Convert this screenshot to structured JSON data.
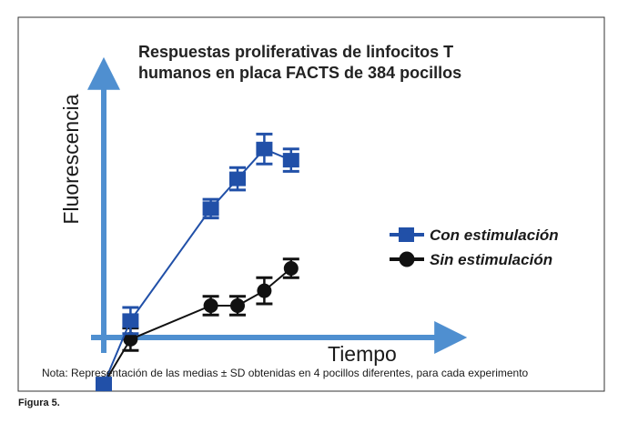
{
  "chart_data": {
    "type": "line",
    "title_lines": [
      "Respuestas proliferativas de linfocitos T",
      "humanos en placa FACTS de 384 pocillos"
    ],
    "xlabel": "Tiempo",
    "ylabel": "Fluorescencia",
    "xlim": [
      0,
      10
    ],
    "ylim": [
      0,
      10
    ],
    "grid": false,
    "legend_position": "right",
    "series": [
      {
        "name": "Con estimulación",
        "color": "#2150a8",
        "marker": "square",
        "x": [
          0,
          1,
          4,
          5,
          6,
          7
        ],
        "y": [
          1.9,
          3.6,
          6.6,
          7.4,
          8.2,
          7.9
        ],
        "err": [
          0.15,
          0.35,
          0.25,
          0.3,
          0.4,
          0.3
        ]
      },
      {
        "name": "Sin estimulación",
        "color": "#111111",
        "marker": "circle",
        "x": [
          0,
          1,
          4,
          5,
          6,
          7
        ],
        "y": [
          1.9,
          3.1,
          4.0,
          4.0,
          4.4,
          5.0
        ],
        "err": [
          0.15,
          0.3,
          0.25,
          0.25,
          0.35,
          0.25
        ]
      }
    ],
    "note": "Nota:  Representación de las medias ± SD obtenidas en 4 pocillos diferentes, para cada experimento"
  },
  "caption": "Figura 5."
}
